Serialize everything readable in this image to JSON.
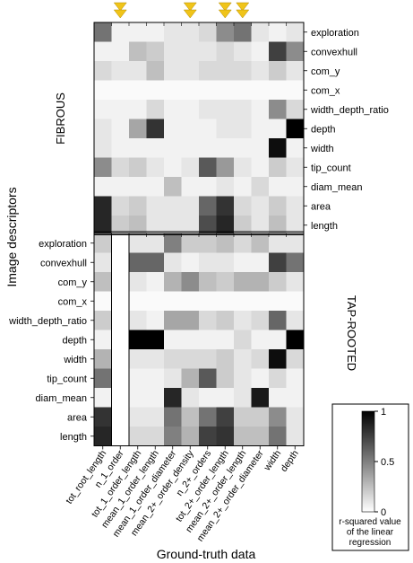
{
  "chart_data": {
    "type": "heatmap",
    "xlabel": "Ground-truth data",
    "ylabel": "Image descriptors",
    "columns": [
      "tot_root_length",
      "n_1_order",
      "tot_1_order_length",
      "mean_1_order_length",
      "mean_1_order_diameter",
      "mean_2+_order_density",
      "n_2+_orders",
      "tot_2+_order_length",
      "mean_2+_order_length",
      "mean_2+_order_diameter",
      "width",
      "depth"
    ],
    "marked_columns": [
      "n_1_order",
      "mean_2+_order_density",
      "tot_2+_order_length",
      "mean_2+_order_length"
    ],
    "rows": [
      "exploration",
      "convexhull",
      "com_y",
      "com_x",
      "width_depth_ratio",
      "depth",
      "width",
      "tip_count",
      "diam_mean",
      "area",
      "length"
    ],
    "colorbar": {
      "title": "r-squared value of the linear regression",
      "min": 0,
      "max": 1,
      "ticks": [
        "1",
        "0.5",
        "0"
      ]
    },
    "panels": [
      {
        "name": "FIBROUS",
        "values": [
          [
            0.55,
            0.05,
            0.05,
            0.05,
            0.1,
            0.1,
            0.15,
            0.45,
            0.55,
            0.1,
            0.05,
            0.1
          ],
          [
            0.05,
            0.05,
            0.25,
            0.2,
            0.1,
            0.1,
            0.1,
            0.15,
            0.1,
            0.05,
            0.75,
            0.45
          ],
          [
            0.15,
            0.1,
            0.1,
            0.25,
            0.1,
            0.1,
            0.15,
            0.15,
            0.15,
            0.1,
            0.2,
            0.1
          ],
          [
            0.02,
            0.02,
            0.02,
            0.02,
            0.02,
            0.02,
            0.02,
            0.02,
            0.02,
            0.02,
            0.02,
            0.02
          ],
          [
            0.05,
            0.05,
            0.05,
            0.15,
            0.05,
            0.05,
            0.1,
            0.1,
            0.1,
            0.05,
            0.45,
            0.15
          ],
          [
            0.1,
            0.05,
            0.35,
            0.8,
            0.05,
            0.05,
            0.05,
            0.1,
            0.1,
            0.05,
            0.05,
            1.0
          ],
          [
            0.1,
            0.05,
            0.05,
            0.05,
            0.05,
            0.05,
            0.05,
            0.05,
            0.05,
            0.05,
            0.95,
            0.05
          ],
          [
            0.45,
            0.15,
            0.2,
            0.1,
            0.05,
            0.1,
            0.65,
            0.4,
            0.1,
            0.05,
            0.2,
            0.1
          ],
          [
            0.05,
            0.05,
            0.05,
            0.05,
            0.25,
            0.05,
            0.05,
            0.1,
            0.05,
            0.15,
            0.05,
            0.05
          ],
          [
            0.85,
            0.15,
            0.2,
            0.1,
            0.1,
            0.1,
            0.6,
            0.8,
            0.15,
            0.1,
            0.2,
            0.1
          ],
          [
            0.85,
            0.2,
            0.25,
            0.1,
            0.1,
            0.1,
            0.7,
            0.85,
            0.2,
            0.1,
            0.25,
            0.1
          ]
        ]
      },
      {
        "name": "TAP-ROOTED",
        "values": [
          [
            0.2,
            0.0,
            0.1,
            0.1,
            0.5,
            0.2,
            0.2,
            0.25,
            0.15,
            0.25,
            0.1,
            0.1
          ],
          [
            0.1,
            0.0,
            0.6,
            0.6,
            0.1,
            0.05,
            0.1,
            0.1,
            0.05,
            0.05,
            0.75,
            0.55
          ],
          [
            0.25,
            0.0,
            0.1,
            0.05,
            0.3,
            0.45,
            0.25,
            0.2,
            0.3,
            0.3,
            0.2,
            0.1
          ],
          [
            0.02,
            0.0,
            0.02,
            0.02,
            0.02,
            0.02,
            0.02,
            0.02,
            0.02,
            0.02,
            0.02,
            0.02
          ],
          [
            0.2,
            0.0,
            0.1,
            0.05,
            0.35,
            0.35,
            0.15,
            0.2,
            0.1,
            0.15,
            0.6,
            0.1
          ],
          [
            0.05,
            0.0,
            1.0,
            1.0,
            0.05,
            0.05,
            0.05,
            0.05,
            0.15,
            0.05,
            0.05,
            1.0
          ],
          [
            0.3,
            0.0,
            0.1,
            0.1,
            0.15,
            0.15,
            0.15,
            0.2,
            0.1,
            0.15,
            0.95,
            0.15
          ],
          [
            0.55,
            0.0,
            0.05,
            0.05,
            0.1,
            0.3,
            0.65,
            0.2,
            0.1,
            0.05,
            0.15,
            0.05
          ],
          [
            0.05,
            0.0,
            0.05,
            0.05,
            0.85,
            0.1,
            0.05,
            0.05,
            0.1,
            0.9,
            0.05,
            0.05
          ],
          [
            0.8,
            0.0,
            0.1,
            0.1,
            0.55,
            0.25,
            0.55,
            0.75,
            0.2,
            0.2,
            0.45,
            0.1
          ],
          [
            0.85,
            0.0,
            0.15,
            0.15,
            0.5,
            0.3,
            0.75,
            0.8,
            0.25,
            0.25,
            0.55,
            0.1
          ]
        ]
      }
    ]
  }
}
